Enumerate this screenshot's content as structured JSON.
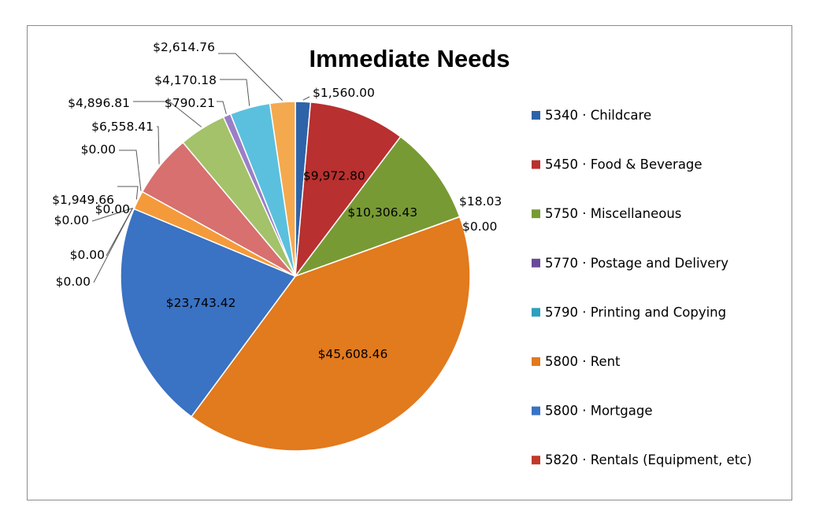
{
  "chart_data": {
    "type": "pie",
    "title": "Immediate Needs",
    "slices": [
      {
        "name": "5340 · Childcare",
        "value": 1560.0,
        "label": "$1,560.00",
        "color": "#2e63a8"
      },
      {
        "name": "5450 · Food & Beverage",
        "value": 9972.8,
        "label": "$9,972.80",
        "color": "#b8302f"
      },
      {
        "name": "5750 · Miscellaneous",
        "value": 10306.43,
        "label": "$10,306.43",
        "color": "#789a34"
      },
      {
        "name": "5770 · Postage and Delivery",
        "value": 18.03,
        "label": "$18.03",
        "color": "#6a4a96"
      },
      {
        "name": "5790 · Printing and Copying",
        "value": 0.0,
        "label": "$0.00",
        "color": "#2d9fbf"
      },
      {
        "name": "5800 · Rent",
        "value": 45608.46,
        "label": "$45,608.46",
        "color": "#e27a1e"
      },
      {
        "name": "5800 · Mortgage",
        "value": 23743.42,
        "label": "$23,743.42",
        "color": "#3a72c4"
      },
      {
        "name": "5820 · Rentals (Equipment, etc)",
        "value": 0.0,
        "label": "$0.00",
        "color": "#c0392b"
      },
      {
        "name": "",
        "value": 0.0,
        "label": "$0.00",
        "color": "#8db04c"
      },
      {
        "name": "",
        "value": 0.0,
        "label": "$0.00",
        "color": "#8a6bb8"
      },
      {
        "name": "",
        "value": 0.0,
        "label": "$0.00",
        "color": "#46b2d2"
      },
      {
        "name": "",
        "value": 1949.66,
        "label": "$1,949.66",
        "color": "#f59a3a"
      },
      {
        "name": "",
        "value": 0.0,
        "label": "$0.00",
        "color": "#5b86cc"
      },
      {
        "name": "",
        "value": 6558.41,
        "label": "$6,558.41",
        "color": "#d7706f"
      },
      {
        "name": "",
        "value": 4896.81,
        "label": "$4,896.81",
        "color": "#a3c26a"
      },
      {
        "name": "",
        "value": 790.21,
        "label": "$790.21",
        "color": "#9b7fc6"
      },
      {
        "name": "",
        "value": 4170.18,
        "label": "$4,170.18",
        "color": "#5bc0de"
      },
      {
        "name": "",
        "value": 2614.76,
        "label": "$2,614.76",
        "color": "#f5a94e"
      }
    ],
    "legend": {
      "placement": "right",
      "entries": [
        {
          "label": "5340 · Childcare",
          "color": "#2e63a8"
        },
        {
          "label": "5450 · Food & Beverage",
          "color": "#b8302f"
        },
        {
          "label": "5750 · Miscellaneous",
          "color": "#789a34"
        },
        {
          "label": "5770 · Postage and Delivery",
          "color": "#6a4a96"
        },
        {
          "label": "5790 · Printing and Copying",
          "color": "#2d9fbf"
        },
        {
          "label": "5800 · Rent",
          "color": "#e27a1e"
        },
        {
          "label": "5800 · Mortgage",
          "color": "#3a72c4"
        },
        {
          "label": "5820 · Rentals (Equipment, etc)",
          "color": "#c0392b"
        }
      ]
    }
  }
}
